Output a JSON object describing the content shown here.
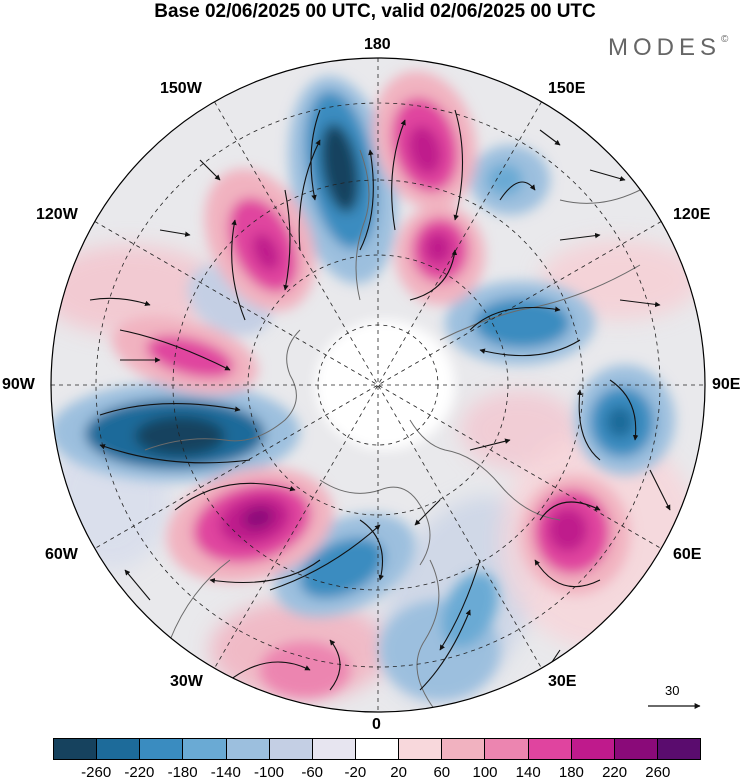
{
  "title": "Base 02/06/2025 00 UTC, valid 02/06/2025 00 UTC",
  "brand": "MODES",
  "brand_mark": "©",
  "longitude_labels": {
    "lon_180": "180",
    "lon_150w": "150W",
    "lon_150e": "150E",
    "lon_120w": "120W",
    "lon_120e": "120E",
    "lon_90w": "90W",
    "lon_90e": "90E",
    "lon_60w": "60W",
    "lon_60e": "60E",
    "lon_30w": "30W",
    "lon_30e": "30E",
    "lon_0": "0"
  },
  "vector_reference": "30",
  "colorbar": {
    "colors": [
      "#16425e",
      "#1d6b9a",
      "#3a8cc0",
      "#6aaad4",
      "#9cbfde",
      "#c4cfe4",
      "#e7e5f0",
      "#ffffff",
      "#f8d8dc",
      "#f1b2c0",
      "#ec85b0",
      "#e0449f",
      "#bf1a8c",
      "#8a0a79",
      "#5a0c6e"
    ],
    "tick_labels": [
      "-260",
      "-220",
      "-180",
      "-140",
      "-100",
      "-60",
      "-20",
      "20",
      "60",
      "100",
      "140",
      "180",
      "220",
      "260"
    ]
  },
  "map_colors": {
    "background": "#e9e9ec",
    "land_line": "#6b6b6b",
    "graticule": "#222222",
    "arrow": "#111111"
  }
}
